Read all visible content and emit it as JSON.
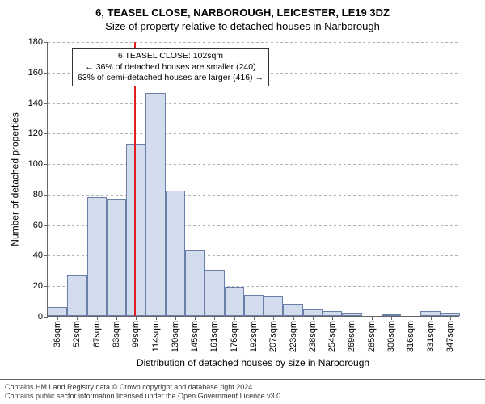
{
  "title": "6, TEASEL CLOSE, NARBOROUGH, LEICESTER, LE19 3DZ",
  "subtitle": "Size of property relative to detached houses in Narborough",
  "ylabel": "Number of detached properties",
  "xlabel": "Distribution of detached houses by size in Narborough",
  "footer_line1": "Contains HM Land Registry data © Crown copyright and database right 2024.",
  "footer_line2": "Contains public sector information licensed under the Open Government Licence v3.0.",
  "annotation": {
    "line1": "6 TEASEL CLOSE: 102sqm",
    "line2": "← 36% of detached houses are smaller (240)",
    "line3": "63% of semi-detached houses are larger (416) →"
  },
  "chart": {
    "type": "histogram",
    "background_color": "#ffffff",
    "bar_fill": "#d2dcec",
    "bar_stroke": "#6a7fa8",
    "grid_color": "#666666",
    "ref_line_color": "#e02020",
    "ref_line_x": 102,
    "ymax": 180,
    "ytick_step": 20,
    "yticks": [
      0,
      20,
      40,
      60,
      80,
      100,
      120,
      140,
      160,
      180
    ],
    "bar_width_sqm": 15,
    "x_start": 36,
    "bars": [
      {
        "label": "36sqm",
        "value": 6
      },
      {
        "label": "52sqm",
        "value": 27
      },
      {
        "label": "67sqm",
        "value": 78
      },
      {
        "label": "83sqm",
        "value": 77
      },
      {
        "label": "99sqm",
        "value": 113
      },
      {
        "label": "114sqm",
        "value": 146
      },
      {
        "label": "130sqm",
        "value": 82
      },
      {
        "label": "145sqm",
        "value": 43
      },
      {
        "label": "161sqm",
        "value": 30
      },
      {
        "label": "176sqm",
        "value": 19
      },
      {
        "label": "192sqm",
        "value": 14
      },
      {
        "label": "207sqm",
        "value": 13
      },
      {
        "label": "223sqm",
        "value": 8
      },
      {
        "label": "238sqm",
        "value": 4
      },
      {
        "label": "254sqm",
        "value": 3
      },
      {
        "label": "269sqm",
        "value": 2
      },
      {
        "label": "285sqm",
        "value": 0
      },
      {
        "label": "300sqm",
        "value": 1
      },
      {
        "label": "316sqm",
        "value": 0
      },
      {
        "label": "331sqm",
        "value": 3
      },
      {
        "label": "347sqm",
        "value": 2
      }
    ]
  }
}
